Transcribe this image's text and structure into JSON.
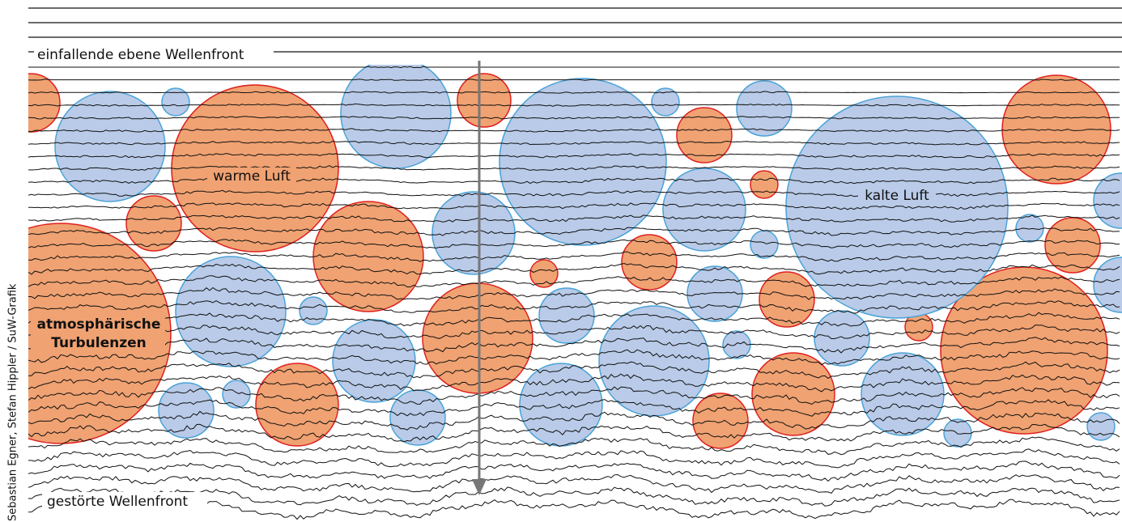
{
  "labels": {
    "incident": "einfallende ebene Wellenfront",
    "warm": "warme Luft",
    "cold": "kalte Luft",
    "turbulence": [
      "atmosphärische",
      "Turbulenzen"
    ],
    "disturbed": "gestörte Wellenfront"
  },
  "credit": "Sebastian Egner, Stefan Hippler / SuW-Grafik"
}
